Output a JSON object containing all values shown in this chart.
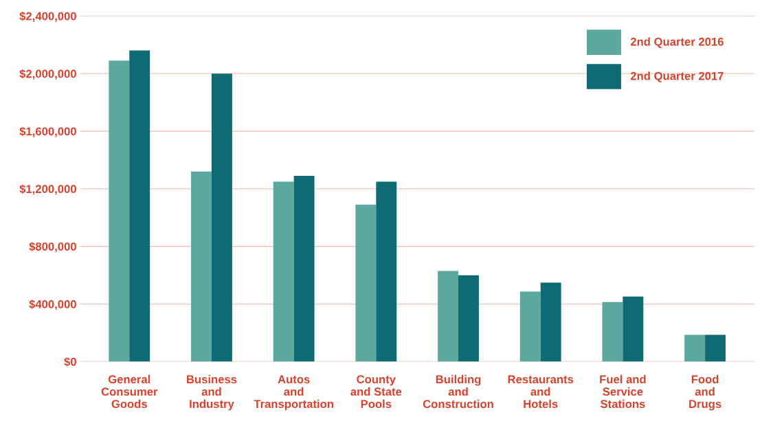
{
  "chart_data": {
    "type": "bar",
    "categories": [
      "General\nConsumer\nGoods",
      "Business\nand\nIndustry",
      "Autos\nand\nTransportation",
      "County\nand State\nPools",
      "Building\nand\nConstruction",
      "Restaurants\nand\nHotels",
      "Fuel and\nService\nStations",
      "Food\nand\nDrugs"
    ],
    "series": [
      {
        "name": "2nd Quarter 2016",
        "color": "#5ba8a0",
        "values": [
          2090000,
          1320000,
          1250000,
          1090000,
          630000,
          486000,
          414000,
          186000
        ]
      },
      {
        "name": "2nd Quarter 2017",
        "color": "#0f6b73",
        "values": [
          2160000,
          2000000,
          1290000,
          1250000,
          600000,
          548000,
          452000,
          186000
        ]
      }
    ],
    "ylim": [
      0,
      2400000
    ],
    "yticks": [
      {
        "value": 0,
        "label": "$0"
      },
      {
        "value": 400000,
        "label": "$400,000"
      },
      {
        "value": 800000,
        "label": "$800,000"
      },
      {
        "value": 1200000,
        "label": "$1,200,000"
      },
      {
        "value": 1600000,
        "label": "$1,600,000"
      },
      {
        "value": 2000000,
        "label": "$2,000,000"
      },
      {
        "value": 2400000,
        "label": "$2,400,000"
      }
    ],
    "grid": "y",
    "legend": "top right"
  }
}
